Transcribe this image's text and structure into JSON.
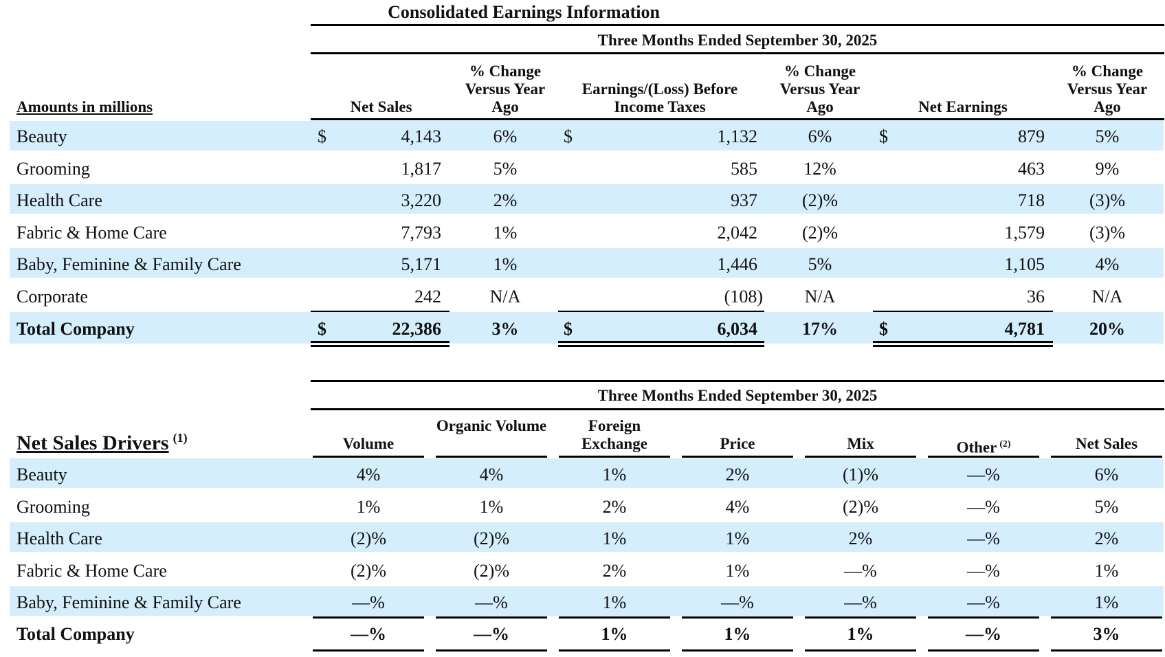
{
  "title": "Consolidated Earnings Information",
  "earnings": {
    "period": "Three Months Ended September 30, 2025",
    "row_header": "Amounts in millions",
    "col_net_sales": "Net Sales",
    "col_pct_1": "% Change Versus Year Ago",
    "col_ebit": "Earnings/(Loss) Before Income Taxes",
    "col_pct_2": "% Change Versus Year Ago",
    "col_net_earnings": "Net Earnings",
    "col_pct_3": "% Change Versus Year Ago",
    "currency": "$",
    "rows": [
      {
        "segment": "Beauty",
        "net_sales": "4,143",
        "pct1": "6%",
        "ebit": "1,132",
        "pct2": "6%",
        "net_earnings": "879",
        "pct3": "5%"
      },
      {
        "segment": "Grooming",
        "net_sales": "1,817",
        "pct1": "5%",
        "ebit": "585",
        "pct2": "12%",
        "net_earnings": "463",
        "pct3": "9%"
      },
      {
        "segment": "Health Care",
        "net_sales": "3,220",
        "pct1": "2%",
        "ebit": "937",
        "pct2": "(2)%",
        "net_earnings": "718",
        "pct3": "(3)%"
      },
      {
        "segment": "Fabric & Home Care",
        "net_sales": "7,793",
        "pct1": "1%",
        "ebit": "2,042",
        "pct2": "(2)%",
        "net_earnings": "1,579",
        "pct3": "(3)%"
      },
      {
        "segment": "Baby, Feminine & Family Care",
        "net_sales": "5,171",
        "pct1": "1%",
        "ebit": "1,446",
        "pct2": "5%",
        "net_earnings": "1,105",
        "pct3": "4%"
      },
      {
        "segment": "Corporate",
        "net_sales": "242",
        "pct1": "N/A",
        "ebit": "(108)",
        "pct2": "N/A",
        "net_earnings": "36",
        "pct3": "N/A"
      }
    ],
    "total": {
      "segment": "Total Company",
      "net_sales": "22,386",
      "pct1": "3%",
      "ebit": "6,034",
      "pct2": "17%",
      "net_earnings": "4,781",
      "pct3": "20%"
    }
  },
  "drivers": {
    "period": "Three Months Ended September 30, 2025",
    "row_header": "Net Sales Drivers",
    "row_header_note": "(1)",
    "col_volume": "Volume",
    "col_organic_volume": "Organic Volume",
    "col_fx": "Foreign Exchange",
    "col_price": "Price",
    "col_mix": "Mix",
    "col_other": "Other",
    "col_other_note": "(2)",
    "col_net_sales": "Net Sales",
    "rows": [
      {
        "segment": "Beauty",
        "volume": "4%",
        "organic": "4%",
        "fx": "1%",
        "price": "2%",
        "mix": "(1)%",
        "other": "—%",
        "net_sales": "6%"
      },
      {
        "segment": "Grooming",
        "volume": "1%",
        "organic": "1%",
        "fx": "2%",
        "price": "4%",
        "mix": "(2)%",
        "other": "—%",
        "net_sales": "5%"
      },
      {
        "segment": "Health Care",
        "volume": "(2)%",
        "organic": "(2)%",
        "fx": "1%",
        "price": "1%",
        "mix": "2%",
        "other": "—%",
        "net_sales": "2%"
      },
      {
        "segment": "Fabric & Home Care",
        "volume": "(2)%",
        "organic": "(2)%",
        "fx": "2%",
        "price": "1%",
        "mix": "—%",
        "other": "—%",
        "net_sales": "1%"
      },
      {
        "segment": "Baby, Feminine & Family Care",
        "volume": "—%",
        "organic": "—%",
        "fx": "1%",
        "price": "—%",
        "mix": "—%",
        "other": "—%",
        "net_sales": "1%"
      }
    ],
    "total": {
      "segment": "Total Company",
      "volume": "—%",
      "organic": "—%",
      "fx": "1%",
      "price": "1%",
      "mix": "1%",
      "other": "—%",
      "net_sales": "3%"
    }
  }
}
